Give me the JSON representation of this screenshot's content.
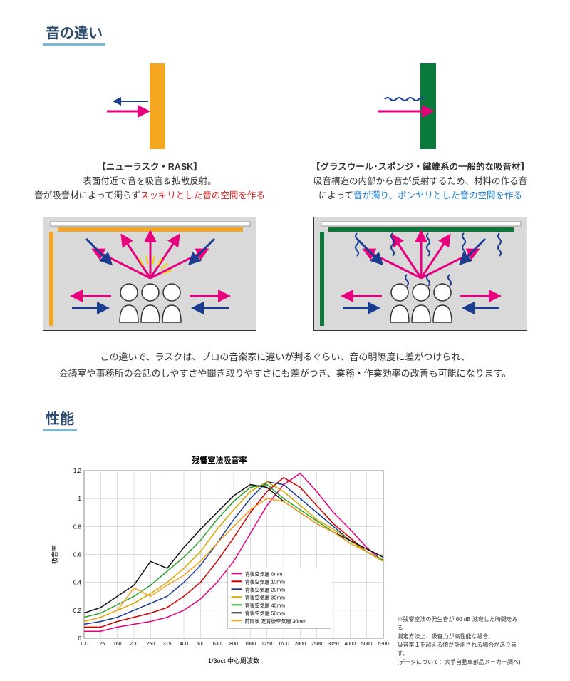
{
  "section1": {
    "title": "音の違い",
    "left": {
      "name": "【ニューラスク・RASK】",
      "desc": "表面付近で音を吸音＆拡散反射。",
      "desc2a": "音が吸音材によって濁らず",
      "desc2b": "スッキリとした音の空間を作る",
      "panel_color": "#f5a623",
      "arrow_in": "#e6007e",
      "arrow_out": "#1a3d8f"
    },
    "right": {
      "name": "【グラスウール･スポンジ・繊維系の一般的な吸音材】",
      "desc": "吸音構造の内部から音が反射するため、材料の作る音",
      "desc2a": "によって",
      "desc2b": "音が濁り、ボンヤリとした音の空間を作る",
      "panel_color": "#0a7a3a",
      "wave_color": "#1a3d8f",
      "arrow_in": "#e6007e"
    },
    "room_bg": "#d9d9d9",
    "summary1": "この違いで、ラスクは、プロの音楽家に違いが判るぐらい、音の明瞭度に差がつけられ、",
    "summary2": "会議室や事務所の会話のしやすさや聞き取りやすさにも差がつき、業務・作業効率の改善も可能になります。"
  },
  "section2": {
    "title": "性能",
    "chart": {
      "title": "残響室法吸音率",
      "xlabel": "1/3oct 中心周波数",
      "ylabel": "吸音率",
      "xticks": [
        "100",
        "125",
        "160",
        "200",
        "250",
        "315",
        "400",
        "500",
        "630",
        "800",
        "1000",
        "1250",
        "1600",
        "2000",
        "2500",
        "3150",
        "4000",
        "5000",
        "6300"
      ],
      "yticks": [
        "0",
        "0.2",
        "0.4",
        "0.6",
        "0.8",
        "1",
        "1.2"
      ],
      "ylim": [
        0,
        1.2
      ],
      "series": [
        {
          "label": "背後空気層 0mm",
          "color": "#e6007e",
          "values": [
            0.05,
            0.05,
            0.08,
            0.1,
            0.12,
            0.15,
            0.2,
            0.28,
            0.4,
            0.55,
            0.75,
            0.95,
            1.1,
            1.18,
            1.05,
            0.9,
            0.78,
            0.65,
            0.55
          ]
        },
        {
          "label": "背後空気層 10mm",
          "color": "#cc0000",
          "values": [
            0.08,
            0.08,
            0.12,
            0.15,
            0.18,
            0.22,
            0.3,
            0.4,
            0.55,
            0.72,
            0.9,
            1.05,
            1.15,
            1.08,
            0.95,
            0.82,
            0.72,
            0.62,
            0.55
          ]
        },
        {
          "label": "背後空気層 20mm",
          "color": "#1a3d8f",
          "values": [
            0.1,
            0.12,
            0.15,
            0.2,
            0.25,
            0.3,
            0.4,
            0.52,
            0.68,
            0.85,
            1.0,
            1.12,
            1.1,
            1.0,
            0.9,
            0.8,
            0.7,
            0.62,
            0.55
          ]
        },
        {
          "label": "背後空気層 30mm",
          "color": "#d4a800",
          "values": [
            0.12,
            0.15,
            0.2,
            0.25,
            0.32,
            0.4,
            0.5,
            0.62,
            0.78,
            0.92,
            1.05,
            1.12,
            1.05,
            0.95,
            0.85,
            0.78,
            0.7,
            0.62,
            0.55
          ]
        },
        {
          "label": "背後空気層 40mm",
          "color": "#2aa02a",
          "values": [
            0.15,
            0.18,
            0.24,
            0.3,
            0.38,
            0.48,
            0.58,
            0.7,
            0.85,
            0.98,
            1.08,
            1.1,
            1.0,
            0.92,
            0.84,
            0.76,
            0.68,
            0.62,
            0.56
          ]
        },
        {
          "label": "背後空気層 50mm",
          "color": "#111111",
          "values": [
            0.18,
            0.22,
            0.3,
            0.38,
            0.55,
            0.5,
            0.65,
            0.78,
            0.9,
            1.02,
            1.1,
            1.08,
            0.98,
            0.9,
            0.82,
            0.76,
            0.7,
            0.64,
            0.58
          ]
        },
        {
          "label": "前間後 定背後空気層 30mm",
          "color": "#f5a623",
          "values": [
            0.12,
            0.15,
            0.2,
            0.36,
            0.3,
            0.38,
            0.45,
            0.55,
            0.68,
            0.8,
            0.92,
            1.0,
            0.98,
            0.9,
            0.82,
            0.76,
            0.68,
            0.62,
            0.55
          ]
        }
      ],
      "grid_color": "#bfbfbf",
      "bg_color": "#ffffff"
    },
    "notes": [
      "※残響室法の発生音が 60 dB 減衰した時間をみる",
      "測定方法上、吸音力が高性能な場合、",
      "吸音率１を超える値が計測される場合があります。",
      "(データについて：大手自動車部品メーカー調べ)"
    ]
  }
}
